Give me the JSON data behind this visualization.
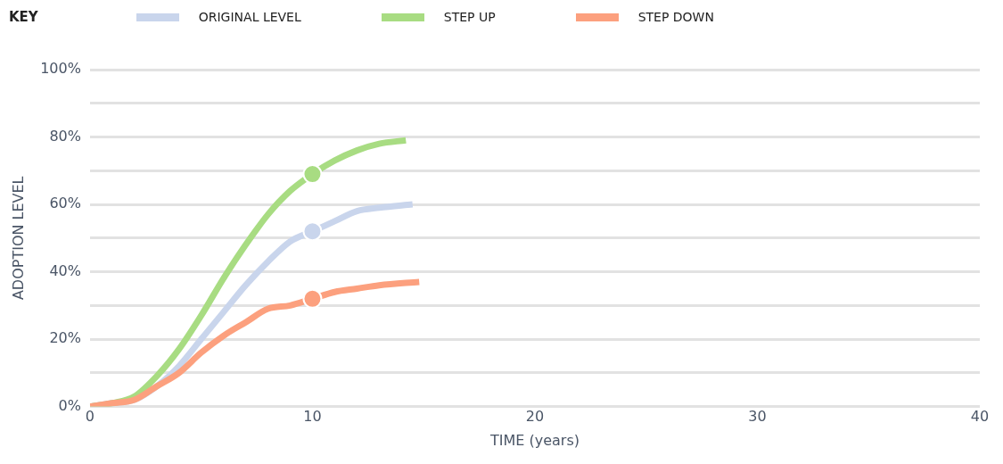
{
  "chart_data": {
    "type": "line",
    "legend_title": "KEY",
    "xlabel": "TIME (years)",
    "ylabel": "ADOPTION LEVEL",
    "xlim": [
      0,
      40
    ],
    "xticks": [
      0,
      10,
      20,
      30,
      40
    ],
    "ylim": [
      0,
      100
    ],
    "yticks": [
      {
        "value": 0,
        "label": "0%"
      },
      {
        "value": 10,
        "label": null
      },
      {
        "value": 20,
        "label": "20%"
      },
      {
        "value": 30,
        "label": null
      },
      {
        "value": 40,
        "label": "40%"
      },
      {
        "value": 50,
        "label": null
      },
      {
        "value": 60,
        "label": "60%"
      },
      {
        "value": 70,
        "label": null
      },
      {
        "value": 80,
        "label": "80%"
      },
      {
        "value": 90,
        "label": null
      },
      {
        "value": 100,
        "label": "100%"
      }
    ],
    "grid": "y",
    "legend": "top",
    "marker": "none",
    "line_style": "solid",
    "series": [
      {
        "name": "ORIGINAL LEVEL",
        "color": "#c9d5ec",
        "x": [
          0,
          1,
          2,
          3,
          4,
          5,
          6,
          7,
          8,
          9,
          10,
          11,
          12,
          13,
          14.5
        ],
        "values": [
          0,
          1,
          2,
          6,
          12,
          20,
          28,
          36,
          43,
          49,
          52,
          55,
          58,
          59,
          60
        ]
      },
      {
        "name": "STEP UP",
        "color": "#a8dc82",
        "x": [
          0,
          1,
          2,
          3,
          4,
          5,
          6,
          7,
          8,
          9,
          10,
          11,
          12,
          13,
          14.2
        ],
        "values": [
          0,
          1,
          3,
          9,
          17,
          27,
          38,
          48,
          57,
          64,
          69,
          73,
          76,
          78,
          79
        ]
      },
      {
        "name": "STEP DOWN",
        "color": "#fca07e",
        "x": [
          0,
          1,
          2,
          3,
          4,
          5,
          6,
          7,
          8,
          9,
          10,
          11,
          12,
          13,
          14.8
        ],
        "values": [
          0,
          1,
          2,
          6,
          10,
          16,
          21,
          25,
          29,
          30,
          32,
          34,
          35,
          36,
          37
        ]
      },
      {
        "type": "scatter",
        "marker": "circle",
        "color": "#c9d5ec",
        "x": [
          10
        ],
        "values": [
          52
        ]
      },
      {
        "type": "scatter",
        "marker": "circle",
        "color": "#a8dc82",
        "x": [
          10
        ],
        "values": [
          69
        ]
      },
      {
        "type": "scatter",
        "marker": "circle",
        "color": "#fca07e",
        "x": [
          10
        ],
        "values": [
          32
        ]
      }
    ]
  }
}
